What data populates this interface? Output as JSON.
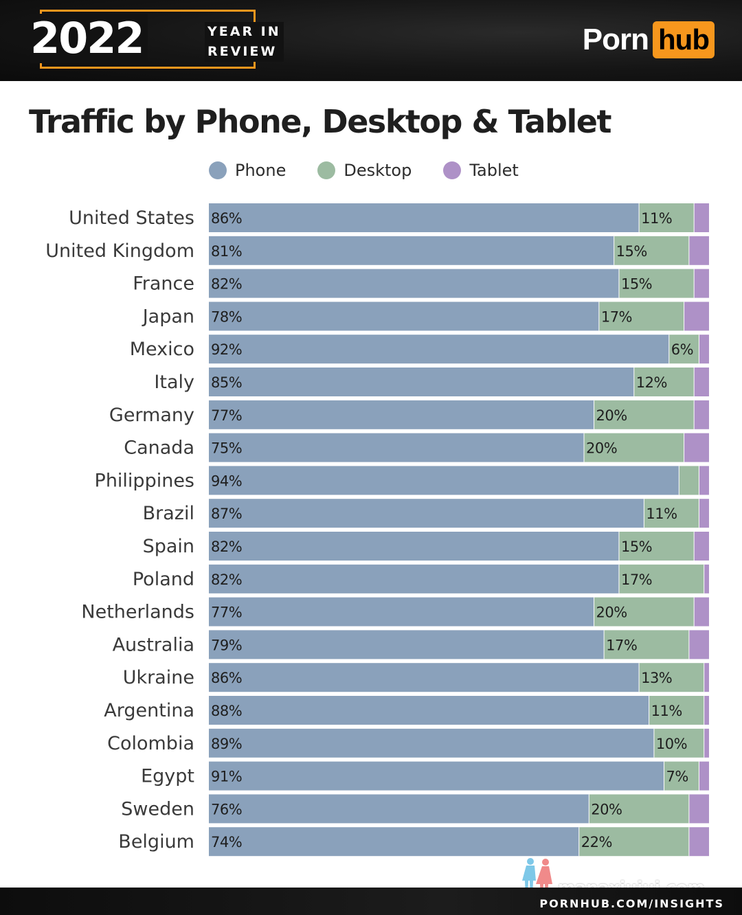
{
  "header": {
    "year": "2022",
    "year_in_review": "YEAR IN\nREVIEW",
    "year_in_review_line1": "YEAR IN",
    "year_in_review_line2": "REVIEW",
    "brand_part1": "Porn",
    "brand_part2": "hub"
  },
  "colors": {
    "phone": "#8aa1bb",
    "desktop": "#9cbba1",
    "tablet": "#ae91c7",
    "accent": "#f7971d"
  },
  "chart_data": {
    "type": "bar",
    "orientation": "horizontal",
    "stacked": true,
    "title": "Traffic by Phone, Desktop & Tablet",
    "legend_placement": "top",
    "xlim": [
      0,
      100
    ],
    "categories": [
      "United States",
      "United Kingdom",
      "France",
      "Japan",
      "Mexico",
      "Italy",
      "Germany",
      "Canada",
      "Philippines",
      "Brazil",
      "Spain",
      "Poland",
      "Netherlands",
      "Australia",
      "Ukraine",
      "Argentina",
      "Colombia",
      "Egypt",
      "Sweden",
      "Belgium"
    ],
    "series": [
      {
        "name": "Phone",
        "values": [
          86,
          81,
          82,
          78,
          92,
          85,
          77,
          75,
          94,
          87,
          82,
          82,
          77,
          79,
          86,
          88,
          89,
          91,
          76,
          74
        ],
        "labels": [
          "86%",
          "81%",
          "82%",
          "78%",
          "92%",
          "85%",
          "77%",
          "75%",
          "94%",
          "87%",
          "82%",
          "82%",
          "77%",
          "79%",
          "86%",
          "88%",
          "89%",
          "91%",
          "76%",
          "74%"
        ]
      },
      {
        "name": "Desktop",
        "values": [
          11,
          15,
          15,
          17,
          6,
          12,
          20,
          20,
          4,
          11,
          15,
          17,
          20,
          17,
          13,
          11,
          10,
          7,
          20,
          22
        ],
        "labels": [
          "11%",
          "15%",
          "15%",
          "17%",
          "6%",
          "12%",
          "20%",
          "20%",
          "",
          "11%",
          "15%",
          "17%",
          "20%",
          "17%",
          "13%",
          "11%",
          "10%",
          "7%",
          "20%",
          "22%"
        ]
      },
      {
        "name": "Tablet",
        "values": [
          3,
          4,
          3,
          5,
          2,
          3,
          3,
          5,
          2,
          2,
          3,
          1,
          3,
          4,
          1,
          1,
          1,
          2,
          4,
          4
        ],
        "labels": [
          "",
          "",
          "",
          "",
          "",
          "",
          "",
          "",
          "",
          "",
          "",
          "",
          "",
          "",
          "",
          "",
          "",
          "",
          "",
          ""
        ]
      }
    ]
  },
  "footer": {
    "url": "PORNHUB.COM/INSIGHTS"
  },
  "watermark": {
    "text": "manaxiuiui.com"
  }
}
